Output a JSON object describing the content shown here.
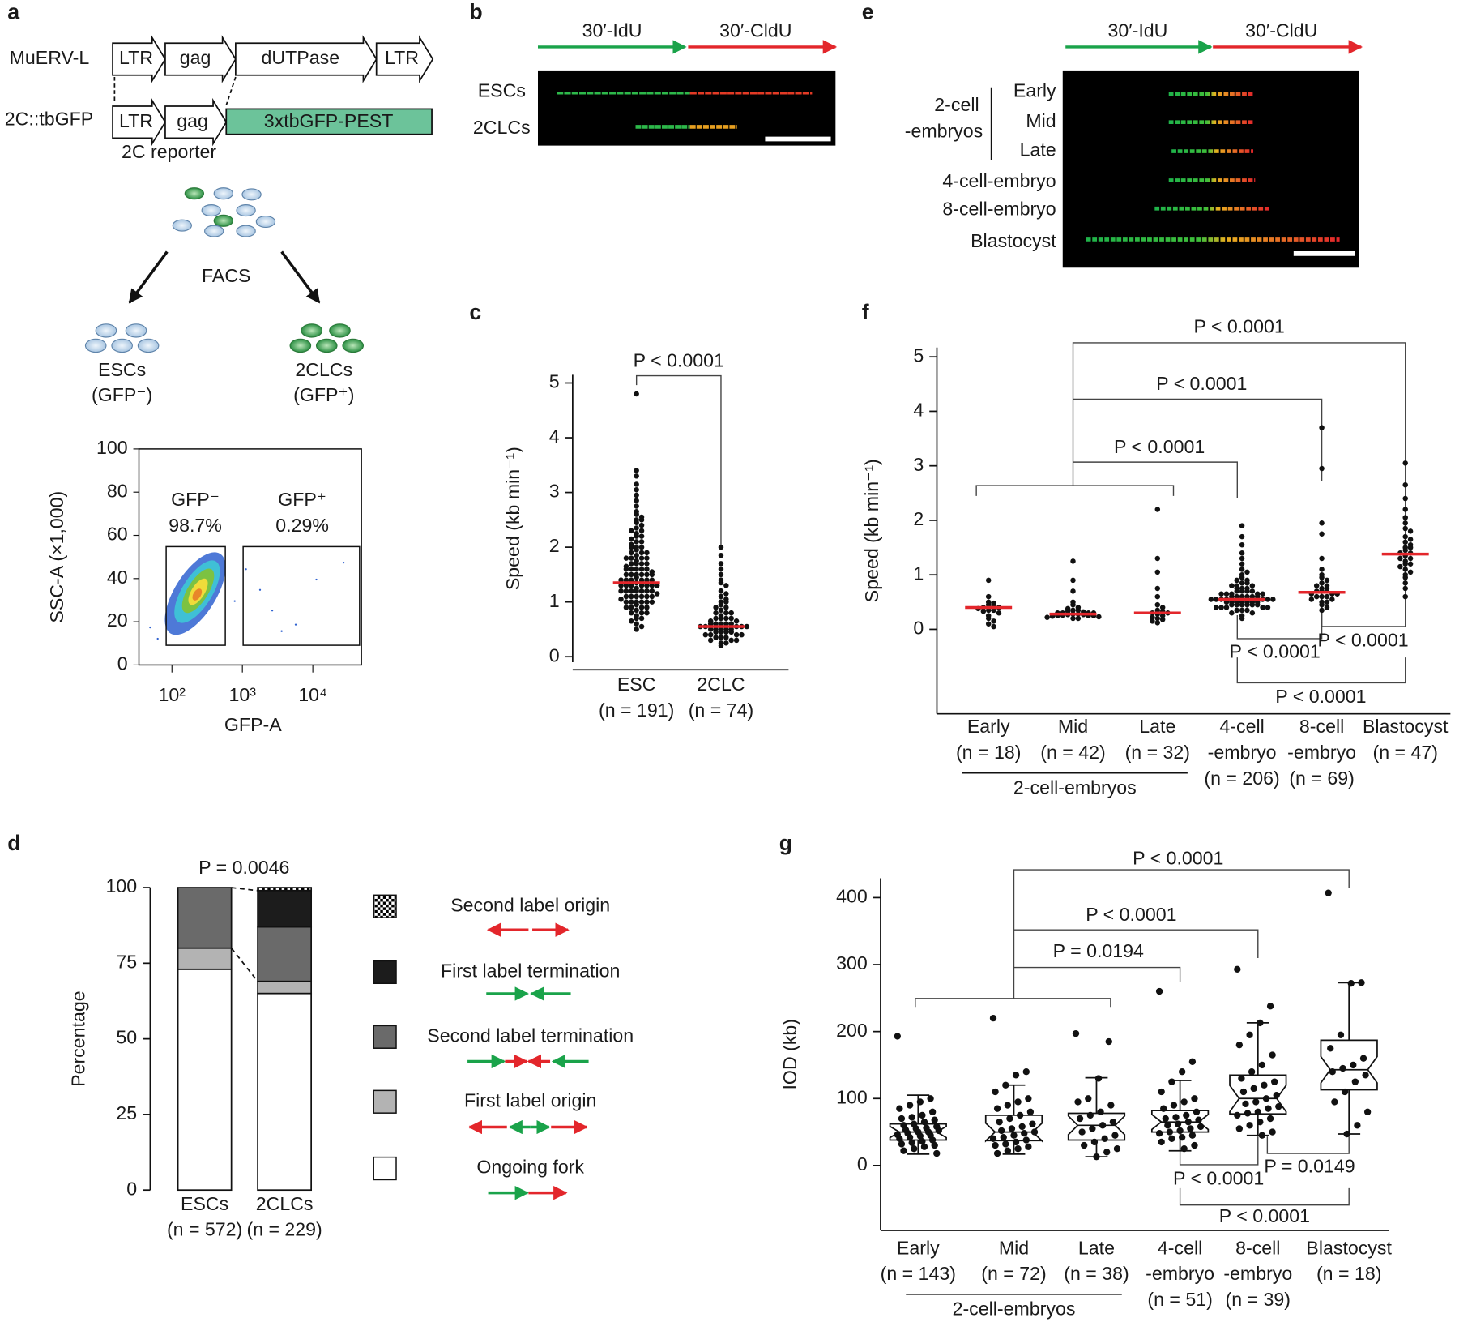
{
  "panel_labels": {
    "a": "a",
    "b": "b",
    "c": "c",
    "d": "d",
    "e": "e",
    "f": "f",
    "g": "g"
  },
  "a": {
    "construct1": {
      "name": "MuERV-L",
      "parts": [
        "LTR",
        "gag",
        "dUTPase",
        "LTR"
      ]
    },
    "construct2": {
      "name": "2C::tbGFP",
      "parts": [
        "LTR",
        "gag",
        "3xtbGFP-PEST"
      ],
      "caption": "2C reporter"
    },
    "method": "FACS",
    "left": [
      "ESCs",
      "(GFP⁻)"
    ],
    "right": [
      "2CLCs",
      "(GFP⁺)"
    ]
  },
  "b": {
    "labels": [
      "30′-IdU",
      "30′-CldU"
    ],
    "rows": [
      "ESCs",
      "2CLCs"
    ]
  },
  "e": {
    "labels": [
      "30′-IdU",
      "30′-CldU"
    ],
    "group": [
      "2-cell",
      "-embryos"
    ],
    "rows": [
      "Early",
      "Mid",
      "Late",
      "4-cell-embryo",
      "8-cell-embryo",
      "Blastocyst"
    ]
  },
  "chart_data": [
    {
      "type": "density",
      "xlabel": "GFP-A",
      "ylabel": "SSC-A (×1,000)",
      "xscale": "log",
      "xlim": [
        34,
        49000
      ],
      "ylim": [
        0,
        100
      ],
      "xticks": [
        {
          "value": 100,
          "label": "10²"
        },
        {
          "value": 1000,
          "label": "10³"
        },
        {
          "value": 10000,
          "label": "10⁴"
        }
      ],
      "yticks": [
        0,
        20,
        40,
        60,
        80,
        100
      ],
      "gates": [
        {
          "name": "GFP⁻",
          "label": "98.7%"
        },
        {
          "name": "GFP⁺",
          "label": "0.29%"
        }
      ]
    },
    {
      "type": "dot",
      "ylabel": "Speed (kb min⁻¹)",
      "ylim": [
        -0.1,
        5.15
      ],
      "yticks": [
        0,
        1,
        2,
        3,
        4,
        5
      ],
      "categories": [
        "ESC",
        "2CLC"
      ],
      "sublabels": [
        [
          "(n = 191)"
        ],
        [
          "(n = 74)"
        ]
      ],
      "color": "#111111",
      "median_color": "#e3262b",
      "groups": [
        {
          "median": 1.35,
          "values": [
            4.8,
            3.4,
            3.3,
            3.15,
            3.05,
            2.95,
            2.85,
            2.75,
            2.65,
            2.6,
            2.55,
            2.5,
            2.5,
            2.45,
            2.4,
            2.35,
            2.3,
            2.3,
            2.25,
            2.2,
            2.2,
            2.15,
            2.1,
            2.1,
            2.05,
            2.0,
            2.0,
            2.0,
            1.95,
            1.9,
            1.9,
            1.9,
            1.85,
            1.8,
            1.8,
            1.8,
            1.8,
            1.75,
            1.7,
            1.7,
            1.7,
            1.7,
            1.65,
            1.6,
            1.6,
            1.6,
            1.6,
            1.6,
            1.55,
            1.5,
            1.5,
            1.5,
            1.5,
            1.5,
            1.5,
            1.45,
            1.4,
            1.4,
            1.4,
            1.4,
            1.4,
            1.4,
            1.35,
            1.3,
            1.3,
            1.3,
            1.3,
            1.3,
            1.3,
            1.3,
            1.25,
            1.2,
            1.2,
            1.2,
            1.2,
            1.2,
            1.2,
            1.2,
            1.15,
            1.1,
            1.1,
            1.1,
            1.1,
            1.1,
            1.1,
            1.05,
            1.0,
            1.0,
            1.0,
            1.0,
            1.0,
            1.0,
            0.95,
            0.9,
            0.9,
            0.9,
            0.9,
            0.85,
            0.8,
            0.8,
            0.8,
            0.75,
            0.7,
            0.7,
            0.65,
            0.6,
            0.55,
            0.5
          ]
        },
        {
          "median": 0.55,
          "values": [
            2.0,
            1.85,
            1.7,
            1.6,
            1.5,
            1.4,
            1.35,
            1.3,
            1.2,
            1.15,
            1.1,
            1.05,
            1.0,
            1.0,
            0.95,
            0.9,
            0.9,
            0.85,
            0.8,
            0.8,
            0.8,
            0.75,
            0.7,
            0.7,
            0.7,
            0.7,
            0.65,
            0.65,
            0.6,
            0.6,
            0.6,
            0.6,
            0.6,
            0.55,
            0.55,
            0.55,
            0.55,
            0.55,
            0.5,
            0.5,
            0.5,
            0.5,
            0.5,
            0.45,
            0.45,
            0.45,
            0.45,
            0.4,
            0.4,
            0.4,
            0.4,
            0.35,
            0.35,
            0.35,
            0.3,
            0.3,
            0.3,
            0.25,
            0.25,
            0.2
          ]
        }
      ],
      "annotations": [
        "P < 0.0001"
      ]
    },
    {
      "type": "stacked-bar",
      "ylabel": "Percentage",
      "ylim": [
        0,
        100
      ],
      "yticks": [
        0,
        25,
        50,
        75,
        100
      ],
      "categories": [
        "ESCs",
        "2CLCs"
      ],
      "sublabels": [
        [
          "(n = 572)"
        ],
        [
          "(n = 229)"
        ]
      ],
      "series": [
        {
          "name": "Ongoing fork",
          "color": "#ffffff",
          "values": [
            73,
            65
          ]
        },
        {
          "name": "First label origin",
          "color": "#b3b3b3",
          "values": [
            7,
            4
          ]
        },
        {
          "name": "Second label termination",
          "color": "#6a6a6a",
          "values": [
            20,
            18
          ]
        },
        {
          "name": "First label termination",
          "color": "#1c1c1c",
          "values": [
            0,
            12
          ]
        },
        {
          "name": "Second label origin",
          "color": "#000000",
          "pattern": "checker",
          "values": [
            0,
            1
          ]
        }
      ],
      "annotations": [
        "P = 0.0046"
      ]
    },
    {
      "type": "dot",
      "ylabel": "Speed (kb min⁻¹)",
      "ylim": [
        -1.55,
        5.17
      ],
      "yticks": [
        0,
        1,
        2,
        3,
        4,
        5
      ],
      "categories": [
        "Early",
        "Mid",
        "Late",
        "4-cell",
        "8-cell",
        "Blastocyst"
      ],
      "sublabels": [
        [
          "(n = 18)"
        ],
        [
          "(n = 42)"
        ],
        [
          "(n = 32)"
        ],
        [
          "-embryo",
          "(n = 206)"
        ],
        [
          "-embryo",
          "(n = 69)"
        ],
        [
          "(n = 47)"
        ]
      ],
      "group_label": "2-cell-embryos",
      "color": "#111111",
      "median_color": "#e3262b",
      "groups": [
        {
          "median": 0.4,
          "values": [
            0.9,
            0.6,
            0.5,
            0.48,
            0.45,
            0.42,
            0.4,
            0.4,
            0.38,
            0.35,
            0.35,
            0.33,
            0.3,
            0.25,
            0.2,
            0.15,
            0.1,
            0.05
          ]
        },
        {
          "median": 0.28,
          "values": [
            1.25,
            0.9,
            0.7,
            0.5,
            0.45,
            0.4,
            0.38,
            0.35,
            0.35,
            0.33,
            0.32,
            0.3,
            0.3,
            0.3,
            0.3,
            0.28,
            0.28,
            0.27,
            0.27,
            0.26,
            0.25,
            0.25,
            0.25,
            0.24,
            0.23,
            0.22,
            0.2,
            0.2
          ]
        },
        {
          "median": 0.3,
          "values": [
            2.2,
            1.3,
            1.05,
            0.75,
            0.6,
            0.45,
            0.4,
            0.35,
            0.33,
            0.3,
            0.3,
            0.28,
            0.25,
            0.22,
            0.2,
            0.18,
            0.15,
            0.12
          ]
        },
        {
          "median": 0.55,
          "values": [
            1.9,
            1.7,
            1.55,
            1.4,
            1.3,
            1.2,
            1.1,
            1.05,
            1.0,
            0.95,
            0.9,
            0.9,
            0.85,
            0.85,
            0.8,
            0.8,
            0.8,
            0.75,
            0.75,
            0.75,
            0.7,
            0.7,
            0.7,
            0.7,
            0.65,
            0.65,
            0.65,
            0.65,
            0.65,
            0.6,
            0.6,
            0.6,
            0.6,
            0.6,
            0.6,
            0.55,
            0.55,
            0.55,
            0.55,
            0.55,
            0.55,
            0.55,
            0.5,
            0.5,
            0.5,
            0.5,
            0.5,
            0.5,
            0.5,
            0.45,
            0.45,
            0.45,
            0.45,
            0.45,
            0.45,
            0.4,
            0.4,
            0.4,
            0.4,
            0.4,
            0.35,
            0.35,
            0.35,
            0.3,
            0.3,
            0.25,
            0.2
          ]
        },
        {
          "median": 0.68,
          "values": [
            3.7,
            2.95,
            1.95,
            1.75,
            1.3,
            1.1,
            1.0,
            0.95,
            0.9,
            0.85,
            0.8,
            0.8,
            0.75,
            0.75,
            0.7,
            0.7,
            0.7,
            0.65,
            0.65,
            0.65,
            0.6,
            0.6,
            0.6,
            0.55,
            0.55,
            0.5,
            0.5,
            0.45,
            0.4,
            0.35
          ]
        },
        {
          "median": 1.38,
          "values": [
            3.05,
            2.65,
            2.4,
            2.2,
            2.05,
            1.95,
            1.85,
            1.8,
            1.7,
            1.65,
            1.6,
            1.55,
            1.5,
            1.5,
            1.45,
            1.4,
            1.4,
            1.35,
            1.3,
            1.3,
            1.25,
            1.2,
            1.2,
            1.15,
            1.1,
            1.05,
            1.0,
            0.95,
            0.85,
            0.75,
            0.6
          ]
        }
      ],
      "annotations": [
        "P < 0.0001",
        "P < 0.0001",
        "P < 0.0001",
        "P < 0.0001",
        "P < 0.0001",
        "P < 0.0001"
      ]
    },
    {
      "type": "box",
      "ylabel": "IOD (kb)",
      "ylim": [
        -97,
        429
      ],
      "yticks": [
        0,
        100,
        200,
        300,
        400
      ],
      "categories": [
        "Early",
        "Mid",
        "Late",
        "4-cell",
        "8-cell",
        "Blastocyst"
      ],
      "sublabels": [
        [
          "(n = 143)"
        ],
        [
          "(n = 72)"
        ],
        [
          "(n = 38)"
        ],
        [
          "-embryo",
          "(n = 51)"
        ],
        [
          "-embryo",
          "(n = 39)"
        ],
        [
          "(n = 18)"
        ]
      ],
      "group_label": "2-cell-embryos",
      "color": "#111111",
      "groups": [
        {
          "low": 17,
          "q1": 38,
          "median": 50,
          "q3": 62,
          "high": 105,
          "points": [
            193,
            100,
            95,
            90,
            85,
            80,
            75,
            72,
            70,
            68,
            65,
            62,
            60,
            58,
            56,
            55,
            53,
            52,
            50,
            50,
            48,
            46,
            45,
            44,
            42,
            40,
            38,
            36,
            34,
            32,
            30,
            28,
            25,
            22,
            18
          ]
        },
        {
          "low": 17,
          "q1": 37,
          "median": 50,
          "q3": 75,
          "high": 120,
          "points": [
            220,
            140,
            135,
            120,
            110,
            100,
            95,
            90,
            85,
            80,
            75,
            70,
            65,
            62,
            58,
            55,
            52,
            50,
            48,
            45,
            42,
            40,
            38,
            35,
            32,
            30,
            28,
            25,
            22,
            18
          ]
        },
        {
          "low": 13,
          "q1": 38,
          "median": 60,
          "q3": 78,
          "high": 131,
          "points": [
            197,
            185,
            130,
            100,
            95,
            90,
            80,
            75,
            70,
            65,
            60,
            55,
            50,
            45,
            40,
            35,
            30,
            25,
            20,
            13
          ]
        },
        {
          "low": 22,
          "q1": 50,
          "median": 65,
          "q3": 82,
          "high": 127,
          "points": [
            260,
            155,
            140,
            125,
            110,
            100,
            95,
            90,
            85,
            80,
            75,
            72,
            70,
            68,
            65,
            62,
            60,
            58,
            55,
            52,
            50,
            48,
            45,
            42,
            40,
            35,
            30,
            25
          ]
        },
        {
          "low": 45,
          "q1": 77,
          "median": 100,
          "q3": 135,
          "high": 213,
          "points": [
            293,
            238,
            213,
            195,
            180,
            165,
            150,
            140,
            130,
            125,
            120,
            115,
            110,
            105,
            100,
            95,
            92,
            88,
            85,
            80,
            78,
            75,
            70,
            65,
            60,
            55,
            50,
            45
          ]
        },
        {
          "low": 47,
          "q1": 113,
          "median": 143,
          "q3": 187,
          "high": 273,
          "points": [
            407,
            273,
            272,
            195,
            175,
            160,
            150,
            145,
            140,
            135,
            125,
            110,
            95,
            80,
            60,
            47
          ]
        }
      ],
      "annotations": [
        "P < 0.0001",
        "P < 0.0001",
        "P = 0.0194",
        "P < 0.0001",
        "P = 0.0149",
        "P < 0.0001"
      ]
    }
  ]
}
